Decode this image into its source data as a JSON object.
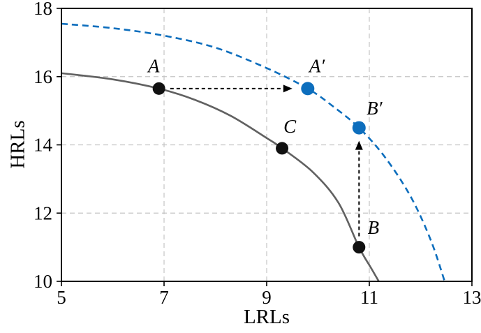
{
  "chart_data": {
    "type": "line",
    "title": "",
    "xlabel": "LRLs",
    "ylabel": "HRLs",
    "xlim": [
      5,
      13
    ],
    "ylim": [
      10,
      18
    ],
    "xticks": [
      5,
      7,
      9,
      11,
      13
    ],
    "yticks": [
      10,
      12,
      14,
      16,
      18
    ],
    "grid": true,
    "legend": false,
    "colors": {
      "frontier_original": "#616161",
      "frontier_expanded": "#0d6ebd",
      "grid": "#c4c4c4",
      "axis": "#000000",
      "point_black": "#111111",
      "point_blue": "#0d6ebd"
    },
    "series": [
      {
        "name": "original-frontier",
        "style": "solid",
        "color": "#616161",
        "points": [
          [
            5,
            16.1
          ],
          [
            6,
            15.92
          ],
          [
            6.9,
            15.65
          ],
          [
            7.6,
            15.32
          ],
          [
            8.3,
            14.85
          ],
          [
            9,
            14.2
          ],
          [
            9.3,
            13.9
          ],
          [
            9.9,
            13.2
          ],
          [
            10.4,
            12.3
          ],
          [
            10.8,
            11.0
          ],
          [
            11.05,
            10.35
          ],
          [
            11.3,
            9.7
          ]
        ]
      },
      {
        "name": "expanded-frontier",
        "style": "dashed",
        "color": "#0d6ebd",
        "points": [
          [
            5,
            17.55
          ],
          [
            6,
            17.42
          ],
          [
            7,
            17.2
          ],
          [
            8,
            16.85
          ],
          [
            9,
            16.25
          ],
          [
            9.8,
            15.65
          ],
          [
            10.3,
            15.12
          ],
          [
            10.8,
            14.5
          ],
          [
            11.3,
            13.65
          ],
          [
            11.8,
            12.5
          ],
          [
            12.2,
            11.2
          ],
          [
            12.5,
            9.85
          ]
        ]
      }
    ],
    "points": [
      {
        "label": "A",
        "x": 6.9,
        "y": 15.65,
        "color": "#111111",
        "r": 9,
        "label_dx": -0.1,
        "label_dy": 0.64
      },
      {
        "label": "A′",
        "x": 9.8,
        "y": 15.65,
        "color": "#0d6ebd",
        "r": 9.5,
        "label_dx": 0.18,
        "label_dy": 0.64
      },
      {
        "label": "C",
        "x": 9.3,
        "y": 13.9,
        "color": "#111111",
        "r": 9,
        "label_dx": 0.15,
        "label_dy": 0.62
      },
      {
        "label": "B′",
        "x": 10.8,
        "y": 14.5,
        "color": "#0d6ebd",
        "r": 9.5,
        "label_dx": 0.3,
        "label_dy": 0.55
      },
      {
        "label": "B",
        "x": 10.8,
        "y": 11.0,
        "color": "#111111",
        "r": 9,
        "label_dx": 0.28,
        "label_dy": 0.55
      }
    ],
    "arrows": [
      {
        "name": "arrow-A-to-Aprime",
        "from": [
          7.12,
          15.65
        ],
        "to": [
          9.5,
          15.65
        ]
      },
      {
        "name": "arrow-B-to-Bprime",
        "from": [
          10.8,
          11.32
        ],
        "to": [
          10.8,
          14.12
        ]
      }
    ]
  }
}
